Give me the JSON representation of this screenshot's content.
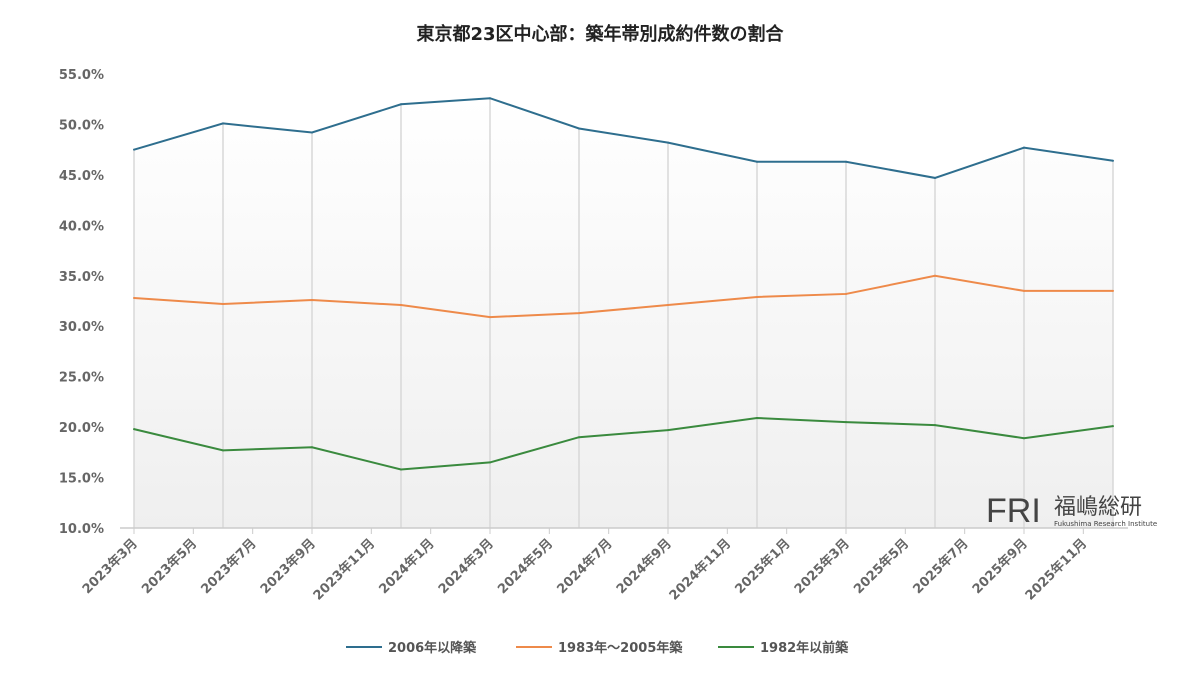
{
  "chart_data": {
    "type": "line",
    "title": "東京都23区中心部：築年帯別成約件数の割合",
    "x_tick_labels": [
      "2023年3月",
      "2023年5月",
      "2023年7月",
      "2023年9月",
      "2023年11月",
      "2024年1月",
      "2024年3月",
      "2024年5月",
      "2024年7月",
      "2024年9月",
      "2024年11月",
      "2025年1月",
      "2025年3月",
      "2025年5月",
      "2025年7月",
      "2025年9月",
      "2025年11月"
    ],
    "x": [
      "2023-03",
      "2023-06",
      "2023-09",
      "2023-12",
      "2024-03",
      "2024-06",
      "2024-09",
      "2024-12",
      "2025-03",
      "2025-06",
      "2025-09",
      "2025-12"
    ],
    "y_tick_labels": [
      "10.0%",
      "15.0%",
      "20.0%",
      "25.0%",
      "30.0%",
      "35.0%",
      "40.0%",
      "45.0%",
      "50.0%",
      "55.0%"
    ],
    "ylim": [
      10,
      55
    ],
    "y_unit": "%",
    "grid": "vertical drop lines at data points",
    "legend_position": "bottom",
    "series": [
      {
        "name": "2006年以降築",
        "color": "#2e6e8e",
        "values": [
          47.5,
          50.1,
          49.2,
          52.0,
          52.6,
          49.6,
          48.2,
          46.3,
          46.3,
          44.7,
          47.7,
          46.4
        ]
      },
      {
        "name": "1983年～2005年築",
        "color": "#ee8a4a",
        "values": [
          32.8,
          32.2,
          32.6,
          32.1,
          30.9,
          31.3,
          32.1,
          32.9,
          33.2,
          35.0,
          33.5,
          33.5
        ]
      },
      {
        "name": "1982年以前築",
        "color": "#3a8a3e",
        "values": [
          19.8,
          17.7,
          18.0,
          15.8,
          16.5,
          19.0,
          19.7,
          20.9,
          20.5,
          20.2,
          18.9,
          20.1
        ]
      }
    ]
  },
  "logo": {
    "mark": "FRI",
    "name": "福嶋総研",
    "sub": "Fukushima Research Institute"
  }
}
